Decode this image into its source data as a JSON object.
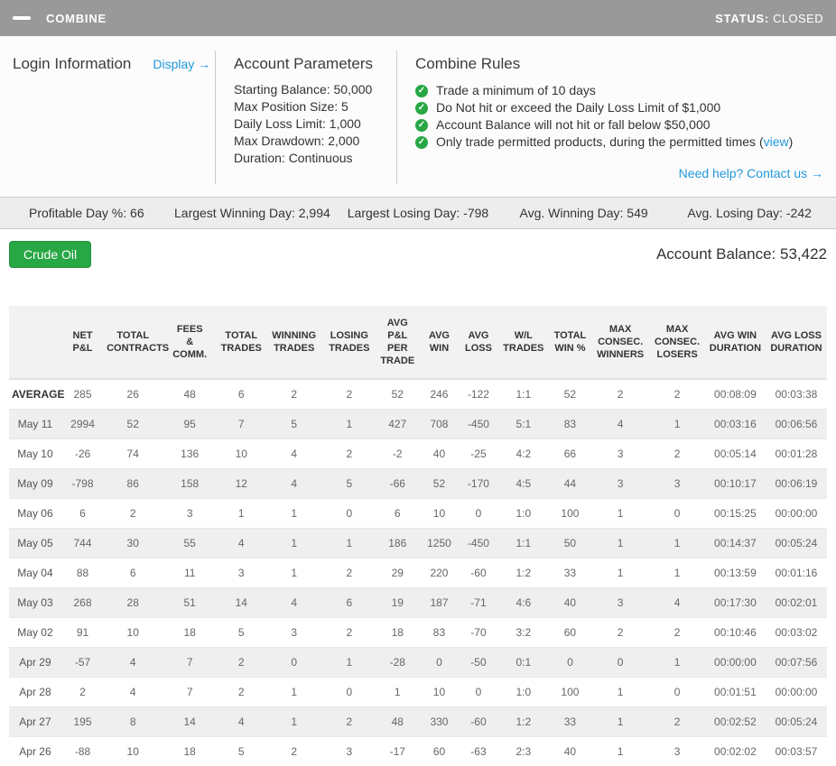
{
  "colors": {
    "titlebar_bg": "#999999",
    "link_blue": "#2398db",
    "rule_check_green": "#28a745",
    "button_green": "#28a745",
    "statsbar_bg": "#ededed",
    "row_stripe": "#efefef"
  },
  "titlebar": {
    "title": "COMBINE",
    "status_label": "STATUS:",
    "status_value": "CLOSED"
  },
  "panel": {
    "login": {
      "heading": "Login Information",
      "display_link": "Display →"
    },
    "account_parameters": {
      "heading": "Account Parameters",
      "items": [
        "Starting Balance: 50,000",
        "Max Position Size: 5",
        "Daily Loss Limit: 1,000",
        "Max Drawdown: 2,000",
        "Duration: Continuous"
      ]
    },
    "combine_rules": {
      "heading": "Combine Rules",
      "rules": [
        {
          "text": "Trade a minimum of 10 days",
          "link": "",
          "after": ""
        },
        {
          "text": "Do Not hit or exceed the Daily Loss Limit of $1,000",
          "link": "",
          "after": ""
        },
        {
          "text": "Account Balance will not hit or fall below $50,000",
          "link": "",
          "after": ""
        },
        {
          "text": "Only trade permitted products, during the permitted times (",
          "link": "view",
          "after": ")"
        }
      ],
      "help_link": "Need help? Contact us →"
    }
  },
  "stats": [
    "Profitable Day %: 66",
    "Largest Winning Day: 2,994",
    "Largest Losing Day: -798",
    "Avg. Winning Day: 549",
    "Avg. Losing Day: -242"
  ],
  "account": {
    "product_button": "Crude Oil",
    "balance_label": "Account Balance:",
    "balance_value": "53,422"
  },
  "table": {
    "columns": [
      "",
      "NET\nP&L",
      "TOTAL\nCONTRACTS",
      "FEES\n&\nCOMM.",
      "TOTAL\nTRADES",
      "WINNING\nTRADES",
      "LOSING\nTRADES",
      "AVG\nP&L\nPER\nTRADE",
      "AVG\nWIN",
      "AVG\nLOSS",
      "W/L\nTRADES",
      "TOTAL\nWIN %",
      "MAX\nCONSEC.\nWINNERS",
      "MAX\nCONSEC.\nLOSERS",
      "AVG WIN\nDURATION",
      "AVG LOSS\nDURATION"
    ],
    "rows": [
      {
        "label": "AVERAGE",
        "values": [
          "285",
          "26",
          "48",
          "6",
          "2",
          "2",
          "52",
          "246",
          "-122",
          "1:1",
          "52",
          "2",
          "2",
          "00:08:09",
          "00:03:38"
        ]
      },
      {
        "label": "May 11",
        "values": [
          "2994",
          "52",
          "95",
          "7",
          "5",
          "1",
          "427",
          "708",
          "-450",
          "5:1",
          "83",
          "4",
          "1",
          "00:03:16",
          "00:06:56"
        ]
      },
      {
        "label": "May 10",
        "values": [
          "-26",
          "74",
          "136",
          "10",
          "4",
          "2",
          "-2",
          "40",
          "-25",
          "4:2",
          "66",
          "3",
          "2",
          "00:05:14",
          "00:01:28"
        ]
      },
      {
        "label": "May 09",
        "values": [
          "-798",
          "86",
          "158",
          "12",
          "4",
          "5",
          "-66",
          "52",
          "-170",
          "4:5",
          "44",
          "3",
          "3",
          "00:10:17",
          "00:06:19"
        ]
      },
      {
        "label": "May 06",
        "values": [
          "6",
          "2",
          "3",
          "1",
          "1",
          "0",
          "6",
          "10",
          "0",
          "1:0",
          "100",
          "1",
          "0",
          "00:15:25",
          "00:00:00"
        ]
      },
      {
        "label": "May 05",
        "values": [
          "744",
          "30",
          "55",
          "4",
          "1",
          "1",
          "186",
          "1250",
          "-450",
          "1:1",
          "50",
          "1",
          "1",
          "00:14:37",
          "00:05:24"
        ]
      },
      {
        "label": "May 04",
        "values": [
          "88",
          "6",
          "11",
          "3",
          "1",
          "2",
          "29",
          "220",
          "-60",
          "1:2",
          "33",
          "1",
          "1",
          "00:13:59",
          "00:01:16"
        ]
      },
      {
        "label": "May 03",
        "values": [
          "268",
          "28",
          "51",
          "14",
          "4",
          "6",
          "19",
          "187",
          "-71",
          "4:6",
          "40",
          "3",
          "4",
          "00:17:30",
          "00:02:01"
        ]
      },
      {
        "label": "May 02",
        "values": [
          "91",
          "10",
          "18",
          "5",
          "3",
          "2",
          "18",
          "83",
          "-70",
          "3:2",
          "60",
          "2",
          "2",
          "00:10:46",
          "00:03:02"
        ]
      },
      {
        "label": "Apr 29",
        "values": [
          "-57",
          "4",
          "7",
          "2",
          "0",
          "1",
          "-28",
          "0",
          "-50",
          "0:1",
          "0",
          "0",
          "1",
          "00:00:00",
          "00:07:56"
        ]
      },
      {
        "label": "Apr 28",
        "values": [
          "2",
          "4",
          "7",
          "2",
          "1",
          "0",
          "1",
          "10",
          "0",
          "1:0",
          "100",
          "1",
          "0",
          "00:01:51",
          "00:00:00"
        ]
      },
      {
        "label": "Apr 27",
        "values": [
          "195",
          "8",
          "14",
          "4",
          "1",
          "2",
          "48",
          "330",
          "-60",
          "1:2",
          "33",
          "1",
          "2",
          "00:02:52",
          "00:05:24"
        ]
      },
      {
        "label": "Apr 26",
        "values": [
          "-88",
          "10",
          "18",
          "5",
          "2",
          "3",
          "-17",
          "60",
          "-63",
          "2:3",
          "40",
          "1",
          "3",
          "00:02:02",
          "00:03:57"
        ]
      }
    ]
  }
}
